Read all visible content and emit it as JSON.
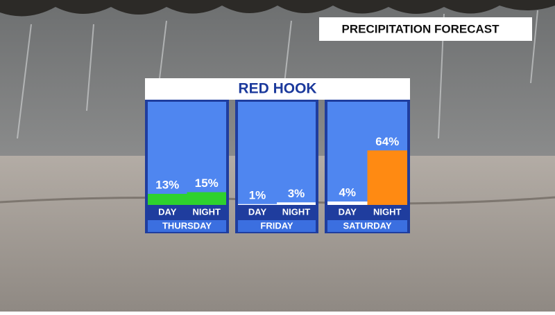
{
  "header": {
    "title": "PRECIPITATION FORECAST"
  },
  "chart_data": {
    "type": "bar",
    "title": "RED HOOK",
    "groups": [
      {
        "name": "THURSDAY",
        "categories": [
          "DAY",
          "NIGHT"
        ],
        "values": [
          13,
          15
        ],
        "value_labels": [
          "13%",
          "15%"
        ],
        "colors": [
          "#2ed12e",
          "#2ed12e"
        ]
      },
      {
        "name": "FRIDAY",
        "categories": [
          "DAY",
          "NIGHT"
        ],
        "values": [
          1,
          3
        ],
        "value_labels": [
          "1%",
          "3%"
        ],
        "colors": [
          "#ffffff",
          "#ffffff"
        ]
      },
      {
        "name": "SATURDAY",
        "categories": [
          "DAY",
          "NIGHT"
        ],
        "values": [
          4,
          64
        ],
        "value_labels": [
          "4%",
          "64%"
        ],
        "colors": [
          "#ffffff",
          "#ff8a12"
        ]
      }
    ]
  }
}
